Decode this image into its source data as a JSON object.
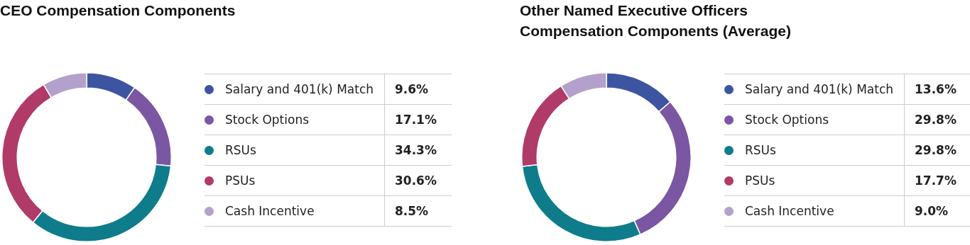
{
  "chart_data": [
    {
      "type": "donut",
      "title": "CEO Compensation Components",
      "categories": [
        "Salary and 401(k) Match",
        "Stock Options",
        "RSUs",
        "PSUs",
        "Cash Incentive"
      ],
      "values": [
        9.6,
        17.1,
        34.3,
        30.6,
        8.5
      ],
      "value_labels": [
        "9.6%",
        "17.1%",
        "34.3%",
        "30.6%",
        "8.5%"
      ],
      "colors": [
        "#3d55a0",
        "#7b56a3",
        "#0e7c8b",
        "#b03a68",
        "#b3a0cc"
      ],
      "legend": "right"
    },
    {
      "type": "donut",
      "title": "Other Named Executive Officers Compensation Components (Average)",
      "categories": [
        "Salary and 401(k) Match",
        "Stock Options",
        "RSUs",
        "PSUs",
        "Cash Incentive"
      ],
      "values": [
        13.6,
        29.8,
        29.8,
        17.7,
        9.0
      ],
      "value_labels": [
        "13.6%",
        "29.8%",
        "29.8%",
        "17.7%",
        "9.0%"
      ],
      "colors": [
        "#3d55a0",
        "#7b56a3",
        "#0e7c8b",
        "#b03a68",
        "#b3a0cc"
      ],
      "legend": "right"
    }
  ]
}
